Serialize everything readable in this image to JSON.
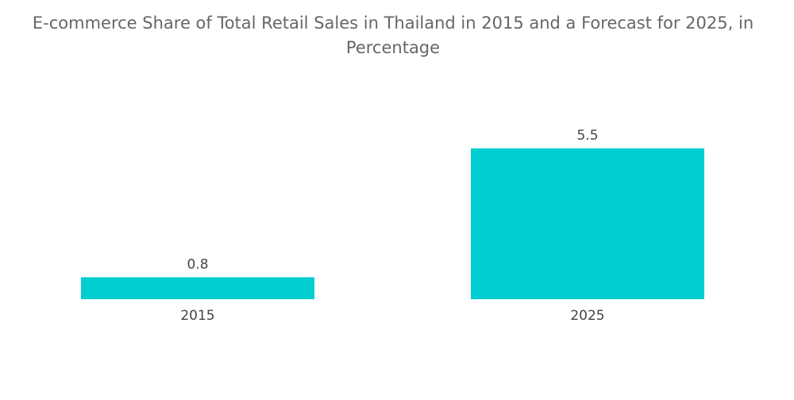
{
  "chart_data": {
    "type": "bar",
    "title": "E-commerce Share of Total Retail Sales in Thailand in 2015 and a Forecast for 2025, in Percentage",
    "categories": [
      "2015",
      "2025"
    ],
    "values": [
      0.8,
      5.5
    ],
    "value_labels": [
      "0.8",
      "5.5"
    ],
    "xlabel": "",
    "ylabel": "",
    "ylim": [
      0,
      5.5
    ],
    "grid": false,
    "legend": "none",
    "bar_color": "#00CED1"
  }
}
